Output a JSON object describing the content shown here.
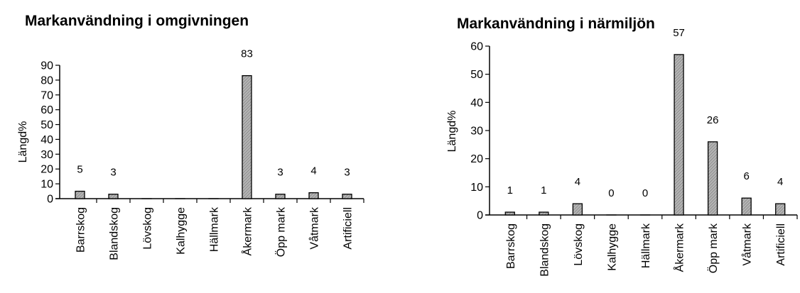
{
  "chart_data": [
    {
      "type": "bar",
      "title": "Markanvändning i omgivningen",
      "xlabel": "",
      "ylabel": "Längd%",
      "ylim": [
        0,
        90
      ],
      "yticks": [
        0,
        10,
        20,
        30,
        40,
        50,
        60,
        70,
        80,
        90
      ],
      "categories": [
        "Barrskog",
        "Blandskog",
        "Lövskog",
        "Kalhygge",
        "Hällmark",
        "Åkermark",
        "Öpp mark",
        "Våtmark",
        "Artificiell"
      ],
      "values": [
        5,
        3,
        0,
        0,
        0,
        83,
        3,
        4,
        3
      ],
      "data_labels": [
        "5",
        "3",
        "",
        "",
        "",
        "83",
        "3",
        "4",
        "3"
      ],
      "bar_fill": "#a8a8a8",
      "grid": false,
      "legend": "none"
    },
    {
      "type": "bar",
      "title": "Markanvändning i närmiljön",
      "xlabel": "",
      "ylabel": "Längd%",
      "ylim": [
        0,
        60
      ],
      "yticks": [
        0,
        10,
        20,
        30,
        40,
        50,
        60
      ],
      "categories": [
        "Barrskog",
        "Blandskog",
        "Lövskog",
        "Kalhygge",
        "Hällmark",
        "Åkermark",
        "Öpp mark",
        "Våtmark",
        "Artificiell"
      ],
      "values": [
        1,
        1,
        4,
        0,
        0,
        57,
        26,
        6,
        4
      ],
      "data_labels": [
        "1",
        "1",
        "4",
        "0",
        "0",
        "57",
        "26",
        "6",
        "4"
      ],
      "bar_fill": "#a8a8a8",
      "grid": false,
      "legend": "none"
    }
  ]
}
